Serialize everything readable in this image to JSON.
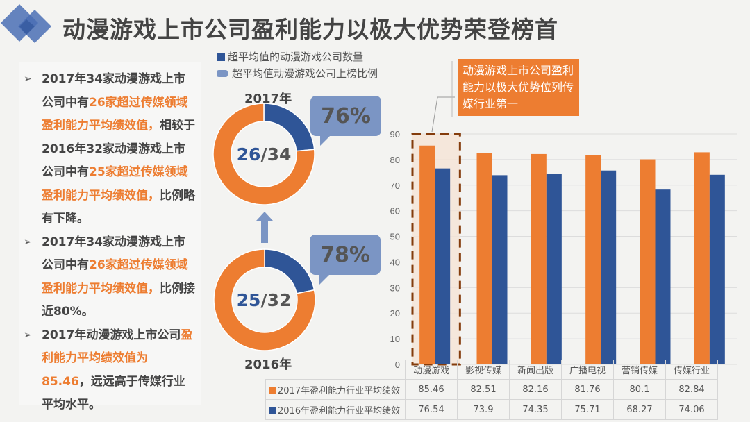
{
  "header": {
    "title": "动漫游戏上市公司盈利能力以极大优势荣登榜首",
    "logo_icon": "overlapping-diamonds-icon"
  },
  "legend_top": {
    "items": [
      {
        "label": "超平均值的动漫游戏公司数量",
        "icon": "square-icon",
        "color": "#2f5597"
      },
      {
        "label": "超平均值动漫游戏公司上榜比例",
        "icon": "speech-bubble-icon",
        "color": "#7b95c4"
      }
    ]
  },
  "summary": {
    "bullets": [
      {
        "parts": [
          {
            "text": "2017年34家动漫游戏上市公司中有",
            "hl": false
          },
          {
            "text": "26家超过传媒领域盈利能力平均绩效值，",
            "hl": true
          },
          {
            "text": "相较于2016年32家动漫游戏上市公司中有",
            "hl": false
          },
          {
            "text": "25家超过传媒领域盈利能力平均绩效值，",
            "hl": true
          },
          {
            "text": "比例略有下降。",
            "hl": false
          }
        ]
      },
      {
        "parts": [
          {
            "text": "2017年34家动漫游戏上市公司中有",
            "hl": false
          },
          {
            "text": "26家超过传媒领域盈利能力平均绩效值，",
            "hl": true
          },
          {
            "text": "比例接近80%。",
            "hl": false
          }
        ]
      },
      {
        "parts": [
          {
            "text": " 2017年动漫游戏上市公司",
            "hl": false
          },
          {
            "text": "盈利能力平均绩效值为85.46",
            "hl": true
          },
          {
            "text": "，远远高于传媒行业平均水平。",
            "hl": false
          }
        ]
      }
    ]
  },
  "donuts": [
    {
      "year": "2017年",
      "above": 26,
      "total": 34,
      "above_text": "26",
      "total_text": "/34",
      "percent": "76%"
    },
    {
      "year": "2016年",
      "above": 25,
      "total": 32,
      "above_text": "25",
      "total_text": "/32",
      "percent": "78%"
    }
  ],
  "callout": {
    "text": "动漫游戏上市公司盈利能力以极大优势位列传媒行业第一"
  },
  "colors": {
    "orange": "#ed7d31",
    "blue": "#2f5597",
    "bubble": "#7b95c4",
    "highlight_fill": "#f5e3d6",
    "highlight_border": "#843c0c"
  },
  "chart_data": {
    "type": "bar",
    "title": "",
    "xlabel": "",
    "ylabel": "",
    "ylim": [
      0,
      90
    ],
    "yticks": [
      0,
      10,
      20,
      30,
      40,
      50,
      60,
      70,
      80,
      90
    ],
    "grid": true,
    "categories": [
      "动漫游戏",
      "影视传媒",
      "新闻出版",
      "广播电视",
      "营销传媒",
      "传媒行业"
    ],
    "series": [
      {
        "name": "2017年盈利能力行业平均绩效",
        "color": "#ed7d31",
        "values": [
          85.46,
          82.51,
          82.16,
          81.76,
          80.1,
          82.84
        ],
        "labels": [
          "85.46",
          "82.51",
          "82.16",
          "81.76",
          "80.1",
          "82.84"
        ]
      },
      {
        "name": "2016年盈利能力行业平均绩效",
        "color": "#2f5597",
        "values": [
          76.54,
          73.9,
          74.35,
          75.71,
          68.27,
          74.06
        ],
        "labels": [
          "76.54",
          "73.9",
          "74.35",
          "75.71",
          "68.27",
          "74.06"
        ]
      }
    ],
    "highlighted_category": "动漫游戏",
    "legend": "bottom-table"
  }
}
